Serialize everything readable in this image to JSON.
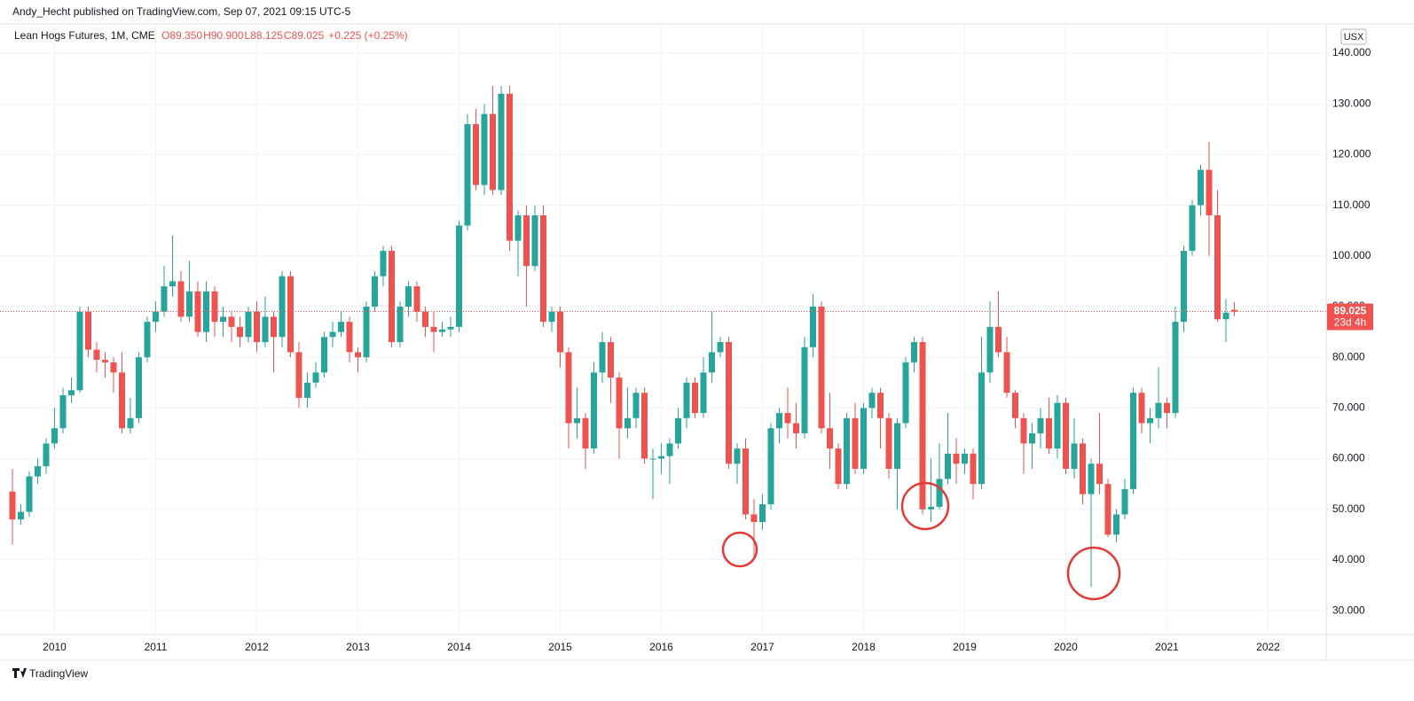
{
  "header": "Andy_Hecht published on TradingView.com, Sep 07, 2021 09:15 UTC-5",
  "footer": "TradingView",
  "chart_data": {
    "type": "candlestick",
    "legend": {
      "symbol": "Lean Hogs Futures, 1M, CME",
      "ohlc_labels": [
        "O89.350",
        "H90.900",
        "L88.125",
        "C89.025",
        "+0.225 (+0.25%)"
      ]
    },
    "currency": "USX",
    "price_label": "89.025",
    "countdown": "23d 4h",
    "up_color": "#26a69a",
    "down_color": "#ef5350",
    "grid": true,
    "categories": [
      null,
      null,
      null,
      null,
      null,
      "2010",
      null,
      null,
      null,
      null,
      null,
      null,
      null,
      null,
      null,
      null,
      null,
      "2011",
      null,
      null,
      null,
      null,
      null,
      null,
      null,
      null,
      null,
      null,
      null,
      "2012",
      null,
      null,
      null,
      null,
      null,
      null,
      null,
      null,
      null,
      null,
      null,
      "2013",
      null,
      null,
      null,
      null,
      null,
      null,
      null,
      null,
      null,
      null,
      null,
      "2014",
      null,
      null,
      null,
      null,
      null,
      null,
      null,
      null,
      null,
      null,
      null,
      "2015",
      null,
      null,
      null,
      null,
      null,
      null,
      null,
      null,
      null,
      null,
      null,
      "2016",
      null,
      null,
      null,
      null,
      null,
      null,
      null,
      null,
      null,
      null,
      null,
      "2017",
      null,
      null,
      null,
      null,
      null,
      null,
      null,
      null,
      null,
      null,
      null,
      "2018",
      null,
      null,
      null,
      null,
      null,
      null,
      null,
      null,
      null,
      null,
      null,
      "2019",
      null,
      null,
      null,
      null,
      null,
      null,
      null,
      null,
      null,
      null,
      null,
      "2020",
      null,
      null,
      null,
      null,
      null,
      null,
      null,
      null,
      null,
      null,
      null,
      "2021",
      null,
      null,
      null,
      null,
      null,
      null,
      null,
      null,
      null,
      null,
      null,
      "2022"
    ],
    "open": [
      53.5,
      48,
      49.5,
      56.5,
      58.5,
      63,
      66,
      72.5,
      73.5,
      89,
      81.5,
      79.5,
      79,
      77,
      66,
      68,
      80,
      87,
      89,
      94,
      95,
      88,
      93,
      85,
      93,
      87,
      88,
      86,
      84,
      89,
      83,
      88,
      84,
      96,
      81,
      72,
      75,
      77,
      84,
      85,
      87,
      81,
      80,
      90,
      96,
      101,
      83,
      90,
      94,
      89,
      86,
      85,
      85.5,
      86,
      106,
      126,
      114,
      128,
      113,
      132,
      103,
      108,
      98,
      108,
      87,
      89,
      81,
      67,
      68,
      62,
      77,
      83,
      76,
      66,
      68,
      73,
      60,
      60,
      60.5,
      63,
      68,
      75,
      69,
      77,
      81,
      83,
      59,
      62,
      49,
      47.5,
      51,
      66,
      69,
      67,
      65,
      82,
      90,
      66,
      62,
      55,
      68,
      58,
      70,
      73,
      68,
      58,
      67,
      79,
      83,
      50,
      50.5,
      56,
      61,
      59,
      61,
      55,
      77,
      86,
      81,
      73,
      68,
      63,
      65,
      68,
      62,
      71,
      58,
      63,
      53,
      59,
      55,
      45,
      49,
      54,
      73,
      67,
      68,
      71,
      69,
      87,
      101,
      110,
      117,
      108,
      87.5,
      89.35,
      null,
      null,
      null,
      null
    ],
    "high": [
      58,
      51,
      57.5,
      60,
      64,
      70,
      74,
      76,
      90,
      90,
      83,
      81,
      80,
      81,
      72,
      81,
      88,
      91,
      98,
      104,
      97,
      99,
      95,
      95,
      94,
      90,
      89,
      88,
      90,
      91,
      92,
      89,
      97,
      97,
      83,
      77,
      79,
      85,
      87,
      89,
      88,
      82,
      91,
      97,
      102,
      102,
      91,
      95,
      95,
      90,
      89,
      87,
      88,
      107,
      128,
      129,
      130,
      133.5,
      133.5,
      133.5,
      109,
      110,
      110,
      110,
      90,
      90,
      82,
      74,
      69,
      79,
      85,
      84,
      77,
      74,
      74,
      74,
      62,
      63,
      64,
      70,
      76,
      76,
      80,
      89,
      84,
      84,
      63,
      64,
      52,
      53,
      67,
      70,
      74,
      71,
      84,
      92.5,
      91,
      73,
      63,
      69,
      71,
      71,
      74,
      74,
      69,
      68,
      80,
      84,
      84,
      60,
      63,
      69,
      64,
      62,
      62,
      84,
      91,
      93,
      84,
      73.5,
      69,
      67,
      70,
      72,
      72.5,
      72,
      68,
      64,
      60,
      69,
      56,
      50,
      56,
      74,
      74,
      70,
      78,
      72,
      90,
      102,
      111,
      118,
      122.5,
      113,
      91.5,
      90.9,
      null,
      null,
      null,
      null
    ],
    "low": [
      43,
      47,
      48.5,
      55,
      57,
      62,
      65,
      71,
      73,
      80,
      77,
      76,
      73,
      65,
      65,
      67,
      79,
      85,
      88,
      92,
      87,
      87,
      84,
      83,
      84,
      84,
      83,
      82,
      83,
      81,
      82,
      77,
      82,
      80,
      70,
      70,
      74,
      76,
      82,
      84,
      79,
      77,
      79,
      89,
      94,
      82,
      82,
      88,
      87,
      84,
      81,
      84,
      84,
      85,
      105,
      113,
      112,
      112,
      112,
      101,
      96,
      90,
      97,
      86,
      85,
      78,
      62,
      64,
      58,
      61,
      75,
      71,
      60,
      64,
      66,
      59,
      52,
      57,
      55,
      62,
      66,
      68,
      68,
      75,
      80,
      58,
      55,
      48,
      40.5,
      46,
      50,
      63,
      64,
      62,
      64,
      80,
      65,
      58,
      54,
      54,
      57,
      57,
      68,
      62,
      56,
      50,
      66,
      77,
      49,
      47.5,
      50,
      55,
      55,
      57,
      52,
      54,
      75,
      80,
      72,
      66,
      57,
      58,
      62,
      61,
      60,
      57,
      56,
      51,
      34.7,
      53,
      44.5,
      43.5,
      48,
      53,
      65,
      63,
      66,
      66,
      68,
      85,
      100,
      108,
      100,
      87,
      83,
      88.125,
      null,
      null,
      null,
      null
    ],
    "close": [
      48,
      49.5,
      56.5,
      58.5,
      63,
      66,
      72.5,
      73.5,
      89,
      81.5,
      79.5,
      79,
      77,
      66,
      68,
      80,
      87,
      89,
      94,
      95,
      88,
      93,
      85,
      93,
      87,
      88,
      86,
      84,
      89,
      83,
      88,
      84,
      96,
      81,
      72,
      75,
      77,
      84,
      85,
      87,
      81,
      80,
      90,
      96,
      101,
      83,
      90,
      94,
      89,
      86,
      85,
      85.5,
      86,
      106,
      126,
      114,
      128,
      113,
      132,
      103,
      108,
      98,
      108,
      87,
      89,
      81,
      67,
      68,
      62,
      77,
      83,
      76,
      66,
      68,
      73,
      60,
      60,
      60.5,
      63,
      68,
      75,
      69,
      77,
      81,
      83,
      59,
      62,
      49,
      47.5,
      51,
      66,
      69,
      67,
      65,
      82,
      90,
      66,
      62,
      55,
      68,
      58,
      70,
      73,
      68,
      58,
      67,
      79,
      83,
      50,
      50.5,
      56,
      61,
      59,
      61,
      55,
      77,
      86,
      81,
      73,
      68,
      63,
      65,
      68,
      62,
      71,
      58,
      63,
      53,
      59,
      55,
      45,
      49,
      54,
      73,
      67,
      68,
      71,
      69,
      87,
      101,
      110,
      117,
      108,
      87.5,
      88.8,
      89.025,
      null,
      null,
      null,
      null
    ],
    "ylim": [
      25.3,
      145.6
    ],
    "yticks": [
      {
        "value": 30,
        "label": "30.000"
      },
      {
        "value": 40,
        "label": "40.000"
      },
      {
        "value": 50,
        "label": "50.000"
      },
      {
        "value": 60,
        "label": "60.000"
      },
      {
        "value": 70,
        "label": "70.000"
      },
      {
        "value": 80,
        "label": "80.000"
      },
      {
        "value": 90,
        "label": "90.000"
      },
      {
        "value": 100,
        "label": "100.000"
      },
      {
        "value": 110,
        "label": "110.000"
      },
      {
        "value": 120,
        "label": "120.000"
      },
      {
        "value": 130,
        "label": "130.000"
      },
      {
        "value": 140,
        "label": "140.000"
      }
    ]
  }
}
